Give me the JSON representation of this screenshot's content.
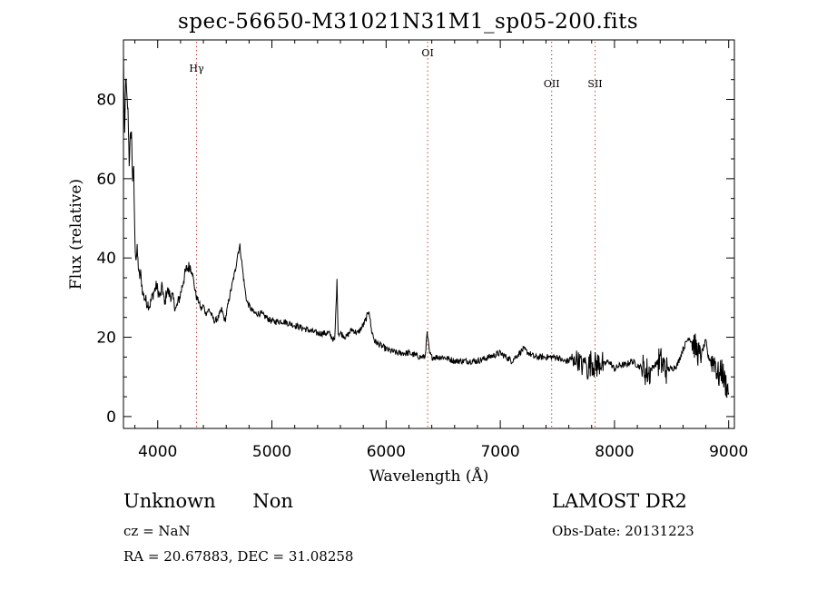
{
  "chart_data": {
    "type": "line",
    "title": "spec-56650-M31021N31M1_sp05-200.fits",
    "xlabel": "Wavelength (Å)",
    "ylabel": "Flux (relative)",
    "xlim": [
      3700,
      9050
    ],
    "ylim": [
      -3,
      95
    ],
    "xticks": [
      4000,
      5000,
      6000,
      7000,
      8000,
      9000
    ],
    "yticks": [
      0,
      20,
      40,
      60,
      80
    ],
    "grid": false,
    "line_color": "#000000",
    "marker_color": "#cc4444",
    "line_markers": [
      {
        "label": "Hγ",
        "x": 4340
      },
      {
        "label": "OI",
        "x": 6364
      },
      {
        "label": "OII",
        "x": 7450
      },
      {
        "label": "SII",
        "x": 7830
      }
    ],
    "series": [
      {
        "x": [
          3700,
          3710,
          3720,
          3730,
          3740,
          3750,
          3760,
          3770,
          3780,
          3790,
          3800,
          3810,
          3820,
          3830,
          3840,
          3850,
          3870,
          3900,
          3930,
          3960,
          3990,
          4000,
          4020,
          4040,
          4060,
          4080,
          4100,
          4130,
          4160,
          4200,
          4230,
          4250,
          4280,
          4300,
          4320,
          4340,
          4360,
          4380,
          4400,
          4420,
          4450,
          4480,
          4500,
          4530,
          4560,
          4590,
          4620,
          4650,
          4680,
          4700,
          4720,
          4740,
          4760,
          4780,
          4800,
          4820,
          4850,
          4900,
          4950,
          5000,
          5100,
          5200,
          5300,
          5400,
          5500,
          5550,
          5570,
          5580,
          5600,
          5650,
          5700,
          5750,
          5800,
          5830,
          5850,
          5870,
          5900,
          5950,
          6000,
          6100,
          6200,
          6300,
          6340,
          6360,
          6380,
          6400,
          6500,
          6600,
          6700,
          6800,
          6900,
          7000,
          7100,
          7200,
          7300,
          7400,
          7500,
          7550,
          7580,
          7600,
          7620,
          7640,
          7660,
          7680,
          7700,
          7720,
          7740,
          7760,
          7780,
          7800,
          7820,
          7850,
          7880,
          7900,
          7950,
          8000,
          8050,
          8100,
          8150,
          8200,
          8250,
          8300,
          8350,
          8400,
          8450,
          8500,
          8550,
          8600,
          8650,
          8700,
          8750,
          8800,
          8820,
          8850,
          8880,
          8900,
          8920,
          8940,
          8960,
          8980,
          9000
        ],
        "y": [
          91,
          70,
          86,
          80,
          77,
          64,
          70,
          72,
          60,
          62,
          44,
          40,
          42,
          38,
          35,
          36,
          31,
          29,
          28,
          31,
          33,
          32,
          30,
          33,
          28,
          32,
          31,
          30,
          27,
          31,
          35,
          37,
          38,
          37,
          33,
          30,
          29,
          27,
          28,
          26,
          27,
          25,
          24,
          25,
          27,
          24,
          29,
          33,
          37,
          41,
          43,
          38,
          33,
          29,
          28,
          27,
          26,
          26,
          25,
          24,
          24,
          23,
          22,
          21,
          21,
          19,
          34,
          21,
          21,
          20,
          22,
          21,
          23,
          25,
          27,
          22,
          19,
          18,
          17,
          16,
          16,
          15,
          15,
          21,
          16,
          15,
          15,
          14,
          14,
          14,
          15,
          16,
          14,
          17,
          15,
          15,
          15,
          14,
          14,
          14,
          15,
          13,
          15,
          14,
          14,
          12,
          15,
          12,
          13,
          14,
          13,
          13,
          14,
          13,
          14,
          12,
          13,
          13,
          14,
          13,
          12,
          11,
          13,
          14,
          12,
          12,
          13,
          17,
          20,
          18,
          15,
          19,
          15,
          14,
          14,
          11,
          10,
          12,
          9,
          8,
          6
        ]
      }
    ],
    "noise_bands": [
      {
        "x0": 7620,
        "x1": 7740,
        "amp": 2.5
      },
      {
        "x0": 7760,
        "x1": 7900,
        "amp": 3.5
      },
      {
        "x0": 8240,
        "x1": 8320,
        "amp": 4.0
      },
      {
        "x0": 8380,
        "x1": 8460,
        "amp": 4.0
      },
      {
        "x0": 8680,
        "x1": 8760,
        "amp": 3.5
      },
      {
        "x0": 8840,
        "x1": 9000,
        "amp": 3.5
      }
    ]
  },
  "footer": {
    "object_type": "Unknown",
    "object_subclass": "Non",
    "cz": "cz = NaN",
    "radec": "RA =   20.67883, DEC =   31.08258",
    "survey": "LAMOST DR2",
    "obs_date": "Obs-Date: 20131223"
  }
}
